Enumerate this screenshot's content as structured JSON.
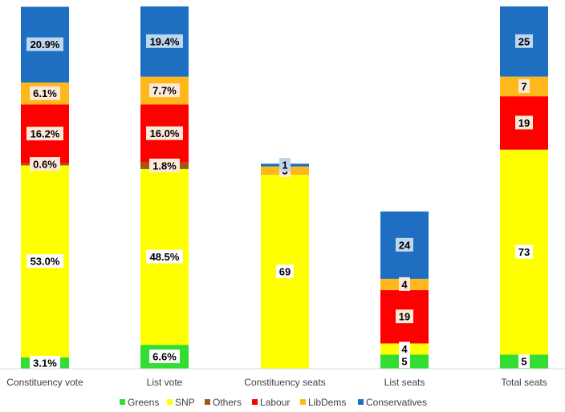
{
  "chart_data": {
    "type": "bar",
    "stacked": true,
    "categories": [
      "Constituency vote",
      "List vote",
      "Constituency seats",
      "List seats",
      "Total seats"
    ],
    "series": [
      {
        "name": "Greens",
        "color": "#33dd33",
        "values": [
          3.1,
          6.6,
          0,
          5,
          5
        ],
        "labels": [
          "3.1%",
          "6.6%",
          "",
          "5",
          "5"
        ]
      },
      {
        "name": "SNP",
        "color": "#ffff00",
        "values": [
          53.0,
          48.5,
          69,
          4,
          73
        ],
        "labels": [
          "53.0%",
          "48.5%",
          "69",
          "4",
          "73"
        ]
      },
      {
        "name": "Others",
        "color": "#9c5a1a",
        "values": [
          0.6,
          1.8,
          0,
          0,
          0
        ],
        "labels": [
          "0.6%",
          "1.8%",
          "",
          "",
          ""
        ]
      },
      {
        "name": "Labour",
        "color": "#ff0000",
        "values": [
          16.2,
          16.0,
          0,
          19,
          19
        ],
        "labels": [
          "16.2%",
          "16.0%",
          "",
          "19",
          "19"
        ]
      },
      {
        "name": "LibDems",
        "color": "#ffb81c",
        "values": [
          6.1,
          7.7,
          3,
          4,
          7
        ],
        "labels": [
          "6.1%",
          "7.7%",
          "3",
          "4",
          "7"
        ]
      },
      {
        "name": "Conservatives",
        "color": "#1e6fc1",
        "values": [
          20.9,
          19.4,
          1,
          24,
          25
        ],
        "labels": [
          "20.9%",
          "19.4%",
          "1",
          "24",
          "25"
        ]
      }
    ],
    "legend": "bottom"
  }
}
